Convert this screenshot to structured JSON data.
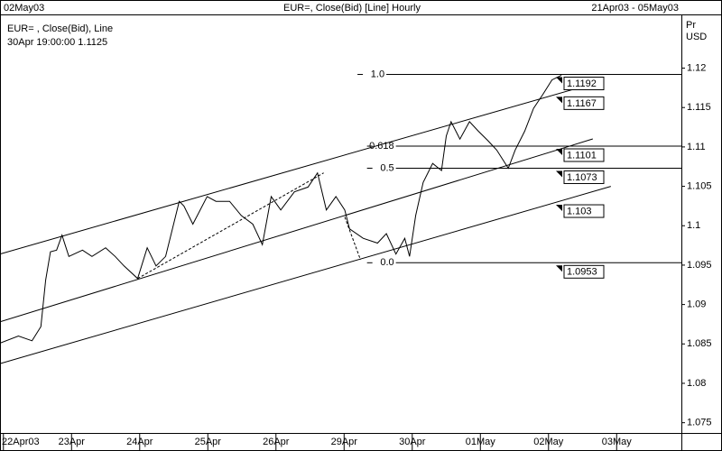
{
  "chart_data": {
    "type": "line",
    "title": "EUR=, Close(Bid) [Line] Hourly",
    "date_left": "02May03",
    "date_range": "21Apr03 - 05May03",
    "y_unit_lines": [
      "Pr",
      "USD"
    ],
    "legend": "upper-left",
    "legend_detail": "30Apr 19:00:00 1.1125",
    "grid": false,
    "xlim": [
      -0.05,
      9.95
    ],
    "xticks": [
      {
        "value": 0,
        "label": "22Apr03"
      },
      {
        "value": 1,
        "label": "23Apr"
      },
      {
        "value": 2,
        "label": "24Apr"
      },
      {
        "value": 3,
        "label": "25Apr"
      },
      {
        "value": 4,
        "label": "26Apr"
      },
      {
        "value": 5,
        "label": "29Apr"
      },
      {
        "value": 6,
        "label": "30Apr"
      },
      {
        "value": 7,
        "label": "01May"
      },
      {
        "value": 8,
        "label": "02May"
      },
      {
        "value": 9,
        "label": "03May"
      }
    ],
    "ylim": [
      1.0737,
      1.1267
    ],
    "yticks": [
      1.12,
      1.115,
      1.11,
      1.105,
      1.1,
      1.095,
      1.09,
      1.085,
      1.08,
      1.075
    ],
    "x": [
      -0.05,
      0.22,
      0.42,
      0.55,
      0.62,
      0.69,
      0.78,
      0.86,
      0.96,
      1.16,
      1.3,
      1.5,
      1.64,
      1.77,
      1.97,
      2.11,
      2.24,
      2.38,
      2.58,
      2.65,
      2.78,
      2.99,
      3.12,
      3.32,
      3.49,
      3.66,
      3.8,
      3.93,
      4.07,
      4.27,
      4.47,
      4.61,
      4.74,
      4.88,
      5.01,
      5.08,
      5.28,
      5.49,
      5.62,
      5.76,
      5.89,
      5.96,
      6.05,
      6.16,
      6.3,
      6.43,
      6.5,
      6.57,
      6.7,
      6.84,
      6.97,
      7.11,
      7.24,
      7.41,
      7.51,
      7.65,
      7.78,
      7.92,
      8.05,
      8.19
    ],
    "series": [
      {
        "name": "EUR= , Close(Bid), Line",
        "color": "#000000",
        "values": [
          1.0851,
          1.086,
          1.0854,
          1.0872,
          1.0931,
          1.0967,
          1.0969,
          1.0988,
          1.0961,
          1.0969,
          1.0961,
          1.0972,
          1.0961,
          1.0949,
          1.0933,
          1.0972,
          1.0949,
          1.0961,
          1.1031,
          1.1025,
          1.1002,
          1.1037,
          1.1031,
          1.1031,
          1.1013,
          1.1002,
          1.0976,
          1.1037,
          1.102,
          1.1043,
          1.1049,
          1.1067,
          1.102,
          1.1037,
          1.102,
          1.0996,
          1.0984,
          1.0978,
          1.099,
          1.0964,
          1.0984,
          1.0961,
          1.1013,
          1.1055,
          1.1079,
          1.107,
          1.1114,
          1.1132,
          1.111,
          1.1132,
          1.112,
          1.1108,
          1.1096,
          1.1073,
          1.1096,
          1.112,
          1.1149,
          1.1167,
          1.1185,
          1.1191
        ]
      }
    ],
    "channels": [
      {
        "x": [
          -0.05,
          8.12
        ],
        "y": [
          1.0964,
          1.1167
        ]
      },
      {
        "x": [
          -0.05,
          8.12
        ],
        "y": [
          1.0878,
          1.1096
        ]
      },
      {
        "x": [
          -0.05,
          8.12
        ],
        "y": [
          1.0825,
          1.103
        ]
      }
    ],
    "fib_levels": [
      {
        "label": "1.0",
        "value": 1.1192,
        "x": 5.62
      },
      {
        "label": "0.618",
        "value": 1.1101,
        "x": 5.76
      },
      {
        "label": "0.5",
        "value": 1.1073,
        "x": 5.76
      },
      {
        "label": "0.0",
        "value": 1.0953,
        "x": 5.76
      }
    ],
    "dashed_lines": [
      {
        "x": [
          1.97,
          4.7
        ],
        "y": [
          1.0933,
          1.1067
        ]
      },
      {
        "x": [
          5.01,
          5.24
        ],
        "y": [
          1.1011,
          1.0957
        ]
      }
    ]
  }
}
